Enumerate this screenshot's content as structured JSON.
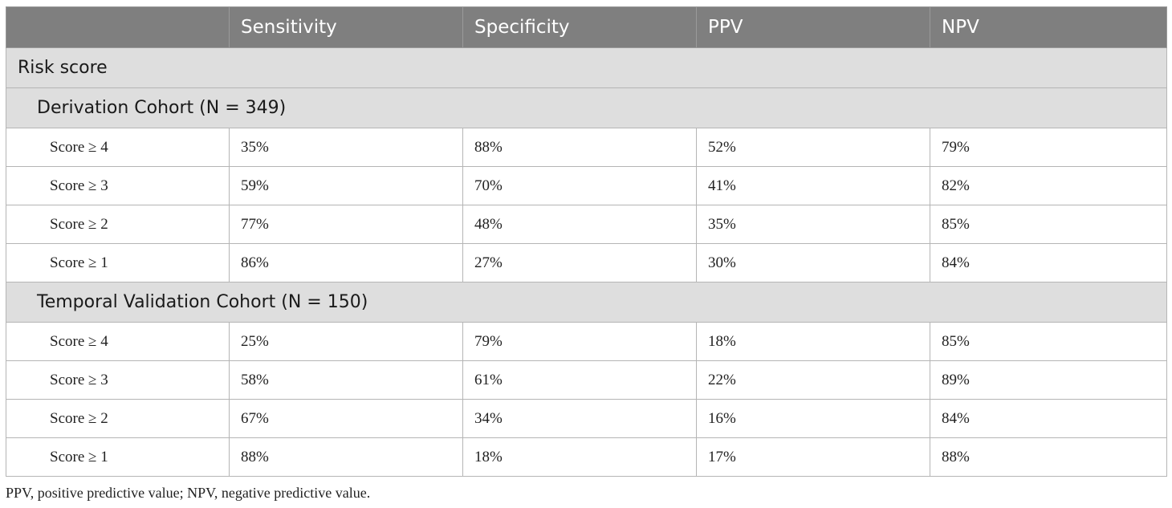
{
  "table": {
    "headers": [
      "",
      "Sensitivity",
      "Specificity",
      "PPV",
      "NPV"
    ],
    "title_row": "Risk score",
    "groups": [
      {
        "label": "Derivation Cohort (N = 349)",
        "rows": [
          [
            "Score ≥ 4",
            "35%",
            "88%",
            "52%",
            "79%"
          ],
          [
            "Score ≥ 3",
            "59%",
            "70%",
            "41%",
            "82%"
          ],
          [
            "Score ≥ 2",
            "77%",
            "48%",
            "35%",
            "85%"
          ],
          [
            "Score ≥ 1",
            "86%",
            "27%",
            "30%",
            "84%"
          ]
        ]
      },
      {
        "label": "Temporal Validation Cohort (N = 150)",
        "rows": [
          [
            "Score ≥ 4",
            "25%",
            "79%",
            "18%",
            "85%"
          ],
          [
            "Score ≥ 3",
            "58%",
            "61%",
            "22%",
            "89%"
          ],
          [
            "Score ≥ 2",
            "67%",
            "34%",
            "16%",
            "84%"
          ],
          [
            "Score ≥ 1",
            "88%",
            "18%",
            "17%",
            "88%"
          ]
        ]
      }
    ]
  },
  "footnote": "PPV, positive predictive value; NPV, negative predictive value.",
  "colors": {
    "header_bg": "#7f7f7f",
    "section_bg": "#dedede",
    "border": "#b5b5b5"
  }
}
